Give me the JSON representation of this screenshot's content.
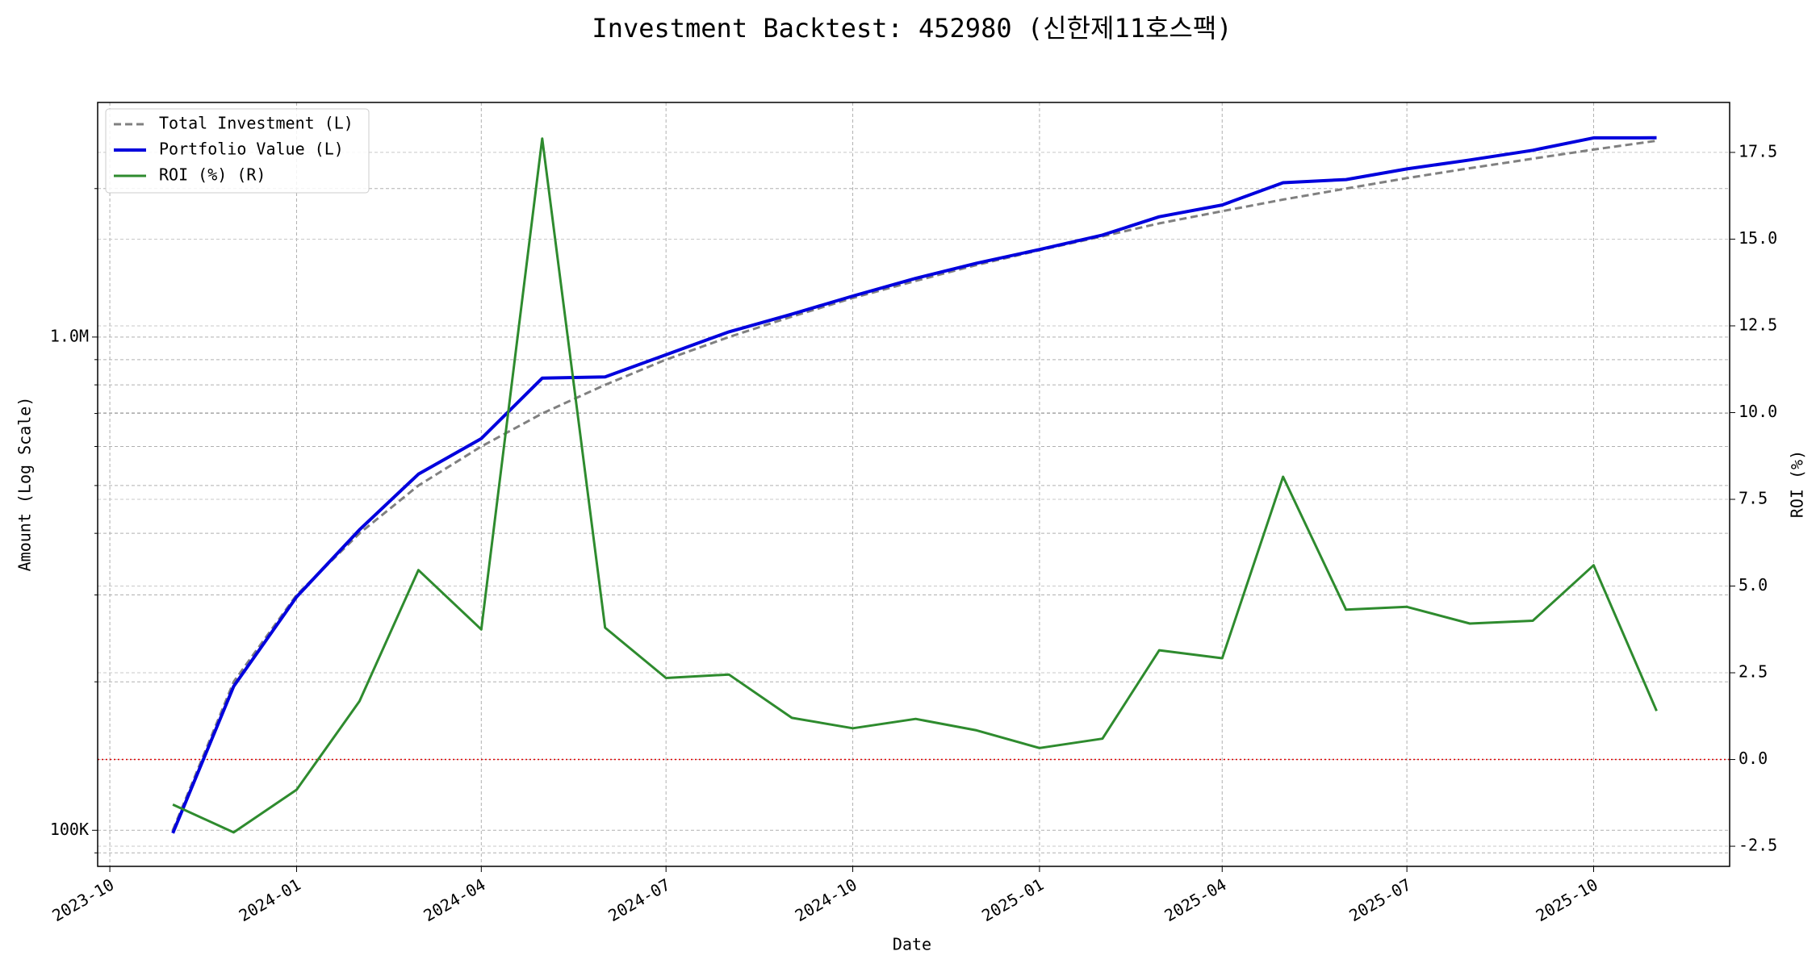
{
  "chart_data": {
    "type": "line",
    "title": "Investment Backtest: 452980 (신한제11호스팩)",
    "xlabel": "Date",
    "ylabel": "Amount (Log Scale)",
    "y2label": "ROI (%)",
    "x": [
      "2023-11",
      "2023-12",
      "2024-01",
      "2024-02",
      "2024-03",
      "2024-04",
      "2024-05",
      "2024-06",
      "2024-07",
      "2024-08",
      "2024-09",
      "2024-10",
      "2024-11",
      "2024-12",
      "2025-01",
      "2025-02",
      "2025-03",
      "2025-04",
      "2025-05",
      "2025-06",
      "2025-07",
      "2025-08",
      "2025-09",
      "2025-10",
      "2025-11"
    ],
    "series": [
      {
        "name": "Total Investment (L)",
        "color": "#808080",
        "linestyle": "dashed",
        "axis": "y",
        "values": [
          100000,
          200000,
          300000,
          400000,
          500000,
          600000,
          700000,
          800000,
          900000,
          1000000,
          1100000,
          1200000,
          1300000,
          1400000,
          1500000,
          1600000,
          1700000,
          1800000,
          1900000,
          2000000,
          2100000,
          2200000,
          2300000,
          2400000,
          2500000
        ]
      },
      {
        "name": "Portfolio Value (L)",
        "color": "#0000dd",
        "linestyle": "solid",
        "axis": "y",
        "values": [
          98700,
          195800,
          297390,
          406720,
          527300,
          622500,
          825300,
          830400,
          921150,
          1024500,
          1113200,
          1210800,
          1315210,
          1411760,
          1504950,
          1609600,
          1753550,
          1852560,
          2055850,
          2086400,
          2192400,
          2286240,
          2392000,
          2534400,
          2535000
        ]
      },
      {
        "name": "ROI (%) (R)",
        "color": "#2e8b2e",
        "linestyle": "solid",
        "axis": "y2",
        "values": [
          -1.3,
          -2.1,
          -0.87,
          1.68,
          5.46,
          3.75,
          17.9,
          3.8,
          2.35,
          2.45,
          1.2,
          0.9,
          1.17,
          0.84,
          0.33,
          0.6,
          3.15,
          2.92,
          8.15,
          4.32,
          4.4,
          3.92,
          4.0,
          5.6,
          1.4
        ]
      }
    ],
    "xlim": [
      "2023-09-25",
      "2025-12-07"
    ],
    "xticks": [
      "2023-10",
      "2024-01",
      "2024-04",
      "2024-07",
      "2024-10",
      "2025-01",
      "2025-04",
      "2025-07",
      "2025-10"
    ],
    "ylog": true,
    "ylim": [
      84500,
      2990000
    ],
    "yticks": [
      {
        "value": 100000,
        "label": "100K"
      },
      {
        "value": 1000000,
        "label": "1.0M"
      }
    ],
    "yminorticks": [
      90000,
      200000,
      300000,
      400000,
      500000,
      600000,
      700000,
      800000,
      900000,
      2000000
    ],
    "y2lim": [
      -3.08,
      18.94
    ],
    "y2ticks": [
      -2.5,
      {
        "value": 0,
        "label": "0.0"
      },
      2.5,
      {
        "value": 5,
        "label": "5.0"
      },
      7.5,
      {
        "value": 10,
        "label": "10.0"
      },
      12.5,
      {
        "value": 15,
        "label": "15.0"
      },
      17.5
    ],
    "y2_reference_line": 0,
    "reference_line_color": "#dd0000",
    "ylabel_color": "#0000dd",
    "y2label_color": "#2e8b2e",
    "grid": true,
    "legend": "upper left"
  }
}
